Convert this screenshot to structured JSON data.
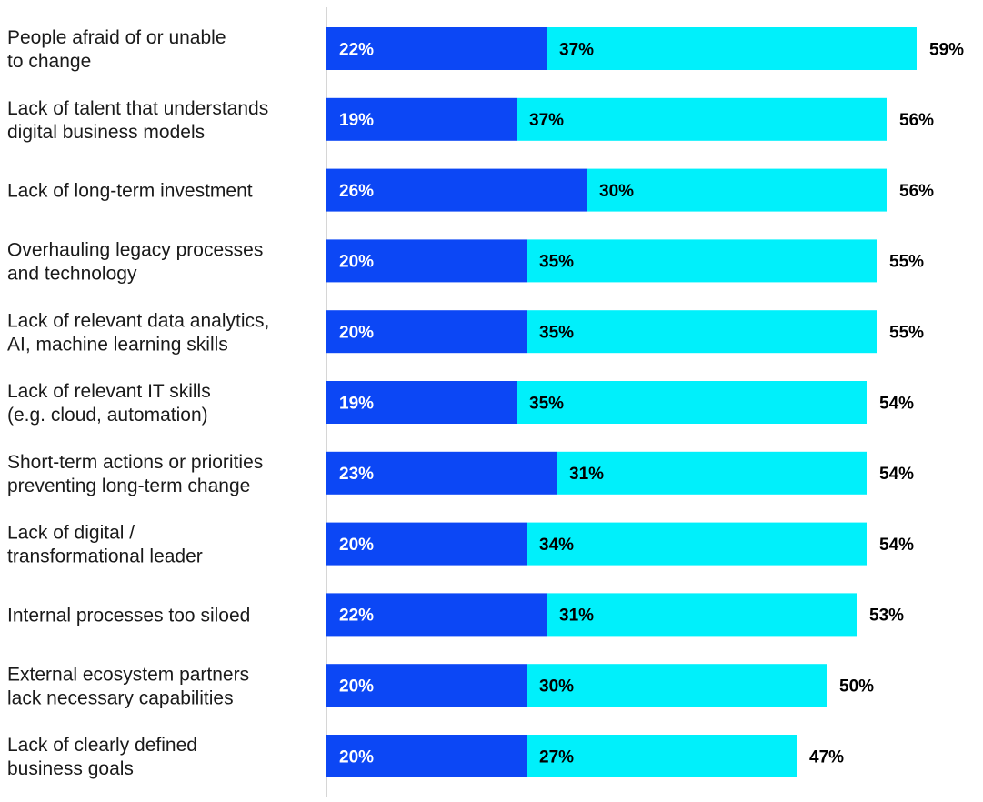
{
  "chart_data": {
    "type": "bar",
    "orientation": "horizontal",
    "stacked": true,
    "title": "",
    "xlabel": "",
    "ylabel": "",
    "xlim": [
      0,
      60
    ],
    "grid": false,
    "legend": "none",
    "categories": [
      [
        "People afraid of or unable",
        "to change"
      ],
      [
        "Lack of talent that understands",
        "digital business models"
      ],
      [
        "Lack of long-term investment"
      ],
      [
        "Overhauling legacy processes",
        "and technology"
      ],
      [
        "Lack of relevant data analytics,",
        "AI, machine learning skills"
      ],
      [
        "Lack of relevant IT skills",
        "(e.g. cloud, automation)"
      ],
      [
        "Short-term actions or priorities",
        "preventing long-term change"
      ],
      [
        "Lack of digital /",
        "transformational leader"
      ],
      [
        "Internal processes too siloed"
      ],
      [
        "External ecosystem partners",
        "lack necessary capabilities"
      ],
      [
        "Lack of clearly defined",
        "business goals"
      ]
    ],
    "series": [
      {
        "color": "#0c47f5",
        "values": [
          22,
          19,
          26,
          20,
          20,
          19,
          23,
          20,
          22,
          20,
          20
        ],
        "labels": [
          "22%",
          "19%",
          "26%",
          "20%",
          "20%",
          "19%",
          "23%",
          "20%",
          "22%",
          "20%",
          "20%"
        ]
      },
      {
        "color": "#00f0fb",
        "values": [
          37,
          37,
          30,
          35,
          35,
          35,
          31,
          34,
          31,
          30,
          27
        ],
        "labels": [
          "37%",
          "37%",
          "30%",
          "35%",
          "35%",
          "35%",
          "31%",
          "34%",
          "31%",
          "30%",
          "27%"
        ]
      }
    ],
    "totals": [
      59,
      56,
      56,
      55,
      55,
      54,
      54,
      54,
      53,
      50,
      47
    ],
    "total_labels": [
      "59%",
      "56%",
      "56%",
      "55%",
      "55%",
      "54%",
      "54%",
      "54%",
      "53%",
      "50%",
      "47%"
    ]
  }
}
